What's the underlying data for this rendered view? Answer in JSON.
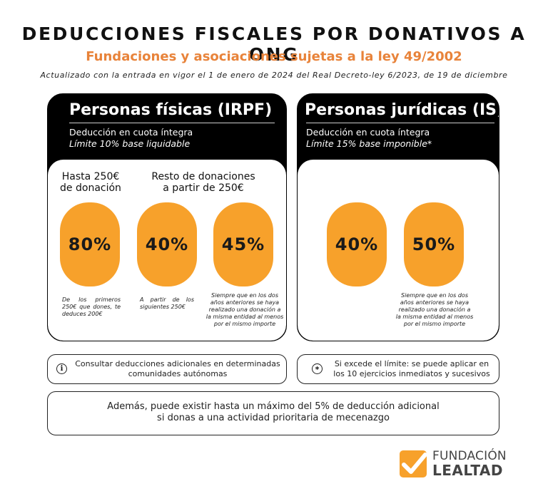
{
  "header": {
    "title": "DEDUCCIONES FISCALES POR DONATIVOS A ONG",
    "subtitle": "Fundaciones y asociaciones sujetas a la ley 49/2002",
    "update_note": "Actualizado con la entrada en vigor el 1 de enero de 2024 del Real Decreto-ley 6/2023, de 19 de diciembre"
  },
  "personas_fisicas": {
    "title": "Personas físicas (IRPF)",
    "line1": "Deducción en cuota íntegra",
    "line2": "Límite 10% base liquidable",
    "col1_header": "Hasta 250€\nde donación",
    "col2_header": "Resto de donaciones\na partir de 250€",
    "pills": [
      {
        "value": "80%",
        "note": "De los primeros 250€ que dones, te deduces 200€"
      },
      {
        "value": "40%",
        "note": "A partir de los siguientes 250€"
      },
      {
        "value": "45%",
        "note": "Siempre que en los dos años anteriores se haya realizado una donación a la misma entidad al menos por el mismo importe"
      }
    ]
  },
  "personas_juridicas": {
    "title": "Personas jurídicas (IS)",
    "line1": "Deducción en cuota íntegra",
    "line2": "Límite 15% base imponible*",
    "pills": [
      {
        "value": "40%"
      },
      {
        "value": "50%",
        "note": "Siempre que en los dos años anteriores se haya realizado una donación a la misma entidad al menos por el mismo importe"
      }
    ]
  },
  "info_boxes": {
    "left_icon": "info-icon",
    "left_text": "Consultar deducciones adicionales en determinadas\ncomunidades autónomas",
    "right_icon": "asterisk-icon",
    "right_text": "Si excede el límite: se puede aplicar en\nlos 10 ejercicios inmediatos y sucesivos"
  },
  "bottom_box": {
    "text": "Además, puede existir hasta un máximo del 5% de deducción adicional\nsi donas a una actividad prioritaria de mecenazgo"
  },
  "logo": {
    "line1": "FUNDACIÓN",
    "line2": "LEALTAD",
    "colors": {
      "orange": "#f7a12b",
      "text": "#444444"
    }
  },
  "colors": {
    "accent": "#e8833a",
    "pill": "#f7a12b",
    "dark": "#000000"
  }
}
